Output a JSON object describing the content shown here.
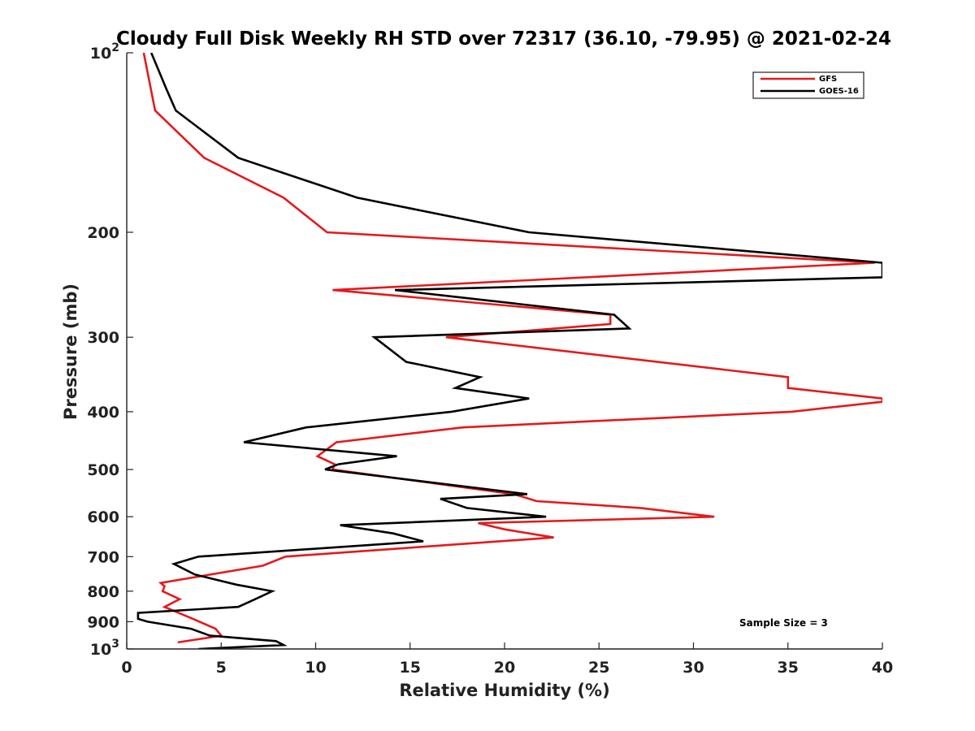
{
  "chart_data": {
    "type": "line",
    "title": "Cloudy Full Disk Weekly RH STD over 72317 (36.10, -79.95) @ 2021-02-24",
    "xlabel": "Relative Humidity (%)",
    "ylabel": "Pressure (mb)",
    "xlim": [
      0,
      40
    ],
    "ylim": [
      100,
      1000
    ],
    "y_scale": "log",
    "y_reversed": true,
    "grid": false,
    "legend_position": "top-right",
    "x_ticks": [
      "0",
      "5",
      "10",
      "15",
      "20",
      "25",
      "30",
      "35",
      "40"
    ],
    "y_ticks": [
      {
        "value": 100,
        "base": "10",
        "exp": "2"
      },
      {
        "value": 200,
        "label": "200"
      },
      {
        "value": 300,
        "label": "300"
      },
      {
        "value": 400,
        "label": "400"
      },
      {
        "value": 500,
        "label": "500"
      },
      {
        "value": 600,
        "label": "600"
      },
      {
        "value": 700,
        "label": "700"
      },
      {
        "value": 800,
        "label": "800"
      },
      {
        "value": 900,
        "label": "900"
      },
      {
        "value": 1000,
        "base": "10",
        "exp": "3"
      }
    ],
    "annotation": "Sample Size = 3",
    "series": [
      {
        "name": "GFS",
        "color": "#e41a1c",
        "points": [
          [
            0.9,
            100
          ],
          [
            1.5,
            125
          ],
          [
            4.1,
            150
          ],
          [
            8.3,
            175
          ],
          [
            10.6,
            200
          ],
          [
            39.6,
            225
          ],
          [
            10.9,
            250
          ],
          [
            25.6,
            275
          ],
          [
            25.6,
            285
          ],
          [
            16.9,
            300
          ],
          [
            35.0,
            350
          ],
          [
            35.0,
            365
          ],
          [
            40.0,
            380
          ],
          [
            40.0,
            385
          ],
          [
            35.2,
            400
          ],
          [
            17.8,
            425
          ],
          [
            11.1,
            450
          ],
          [
            10.1,
            475
          ],
          [
            11.0,
            490
          ],
          [
            10.9,
            500
          ],
          [
            20.5,
            550
          ],
          [
            21.7,
            565
          ],
          [
            27.2,
            580
          ],
          [
            31.1,
            600
          ],
          [
            18.6,
            615
          ],
          [
            20.0,
            630
          ],
          [
            22.6,
            650
          ],
          [
            8.4,
            700
          ],
          [
            7.2,
            725
          ],
          [
            1.8,
            775
          ],
          [
            2.0,
            785
          ],
          [
            1.9,
            800
          ],
          [
            2.8,
            825
          ],
          [
            2.0,
            850
          ],
          [
            3.5,
            890
          ],
          [
            4.7,
            925
          ],
          [
            5.0,
            950
          ],
          [
            2.7,
            975
          ]
        ]
      },
      {
        "name": "GOES-16",
        "color": "#000000",
        "points": [
          [
            1.3,
            100
          ],
          [
            2.1,
            115
          ],
          [
            2.6,
            125
          ],
          [
            5.9,
            150
          ],
          [
            12.2,
            175
          ],
          [
            21.3,
            200
          ],
          [
            40.0,
            225
          ],
          [
            40.0,
            238
          ],
          [
            14.2,
            250
          ],
          [
            25.8,
            275
          ],
          [
            26.6,
            290
          ],
          [
            13.1,
            300
          ],
          [
            14.8,
            330
          ],
          [
            18.7,
            350
          ],
          [
            17.4,
            365
          ],
          [
            21.3,
            380
          ],
          [
            17.2,
            400
          ],
          [
            9.5,
            425
          ],
          [
            6.2,
            450
          ],
          [
            14.3,
            475
          ],
          [
            11.2,
            490
          ],
          [
            10.5,
            500
          ],
          [
            21.2,
            550
          ],
          [
            16.6,
            560
          ],
          [
            18.0,
            580
          ],
          [
            22.2,
            600
          ],
          [
            11.3,
            620
          ],
          [
            14.1,
            640
          ],
          [
            15.7,
            660
          ],
          [
            3.8,
            700
          ],
          [
            2.5,
            720
          ],
          [
            3.6,
            750
          ],
          [
            5.8,
            780
          ],
          [
            7.7,
            800
          ],
          [
            6.8,
            825
          ],
          [
            5.9,
            850
          ],
          [
            0.6,
            870
          ],
          [
            0.6,
            890
          ],
          [
            1.1,
            900
          ],
          [
            3.4,
            925
          ],
          [
            4.4,
            950
          ],
          [
            7.9,
            970
          ],
          [
            8.3,
            985
          ],
          [
            3.8,
            1000
          ]
        ]
      }
    ]
  }
}
